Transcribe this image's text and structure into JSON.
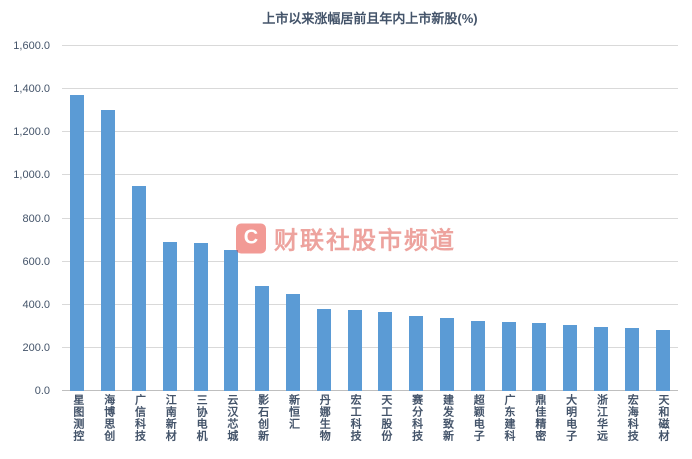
{
  "title": "上市以来涨幅居前且年内上市新股(%)",
  "watermark": {
    "logo_letter": "C",
    "text": "财联社股市频道",
    "color": "#E0584F"
  },
  "chart_data": {
    "type": "bar",
    "title": "上市以来涨幅居前且年内上市新股(%)",
    "categories": [
      "星图测控",
      "海博思创",
      "广信科技",
      "江南新材",
      "三协电机",
      "云汉芯城",
      "影石创新",
      "新恒汇",
      "丹娜生物",
      "宏工科技",
      "天工股份",
      "赛分科技",
      "建发致新",
      "超颖电子",
      "广东建科",
      "鼎佳精密",
      "大明电子",
      "浙江华远",
      "宏海科技",
      "天和磁材"
    ],
    "values": [
      1375,
      1305,
      950,
      690,
      688,
      655,
      488,
      450,
      380,
      376,
      366,
      348,
      340,
      326,
      320,
      315,
      306,
      298,
      292,
      283
    ],
    "xlabel": "",
    "ylabel": "",
    "ylim": [
      0,
      1600
    ],
    "ytick_step": 200,
    "ytick_format": "thousands_one_decimal",
    "bar_color": "#5B9BD5",
    "grid": true,
    "gridline_color": "#D9D9D9",
    "axis_label_color": "#44546A",
    "legend": "none"
  }
}
